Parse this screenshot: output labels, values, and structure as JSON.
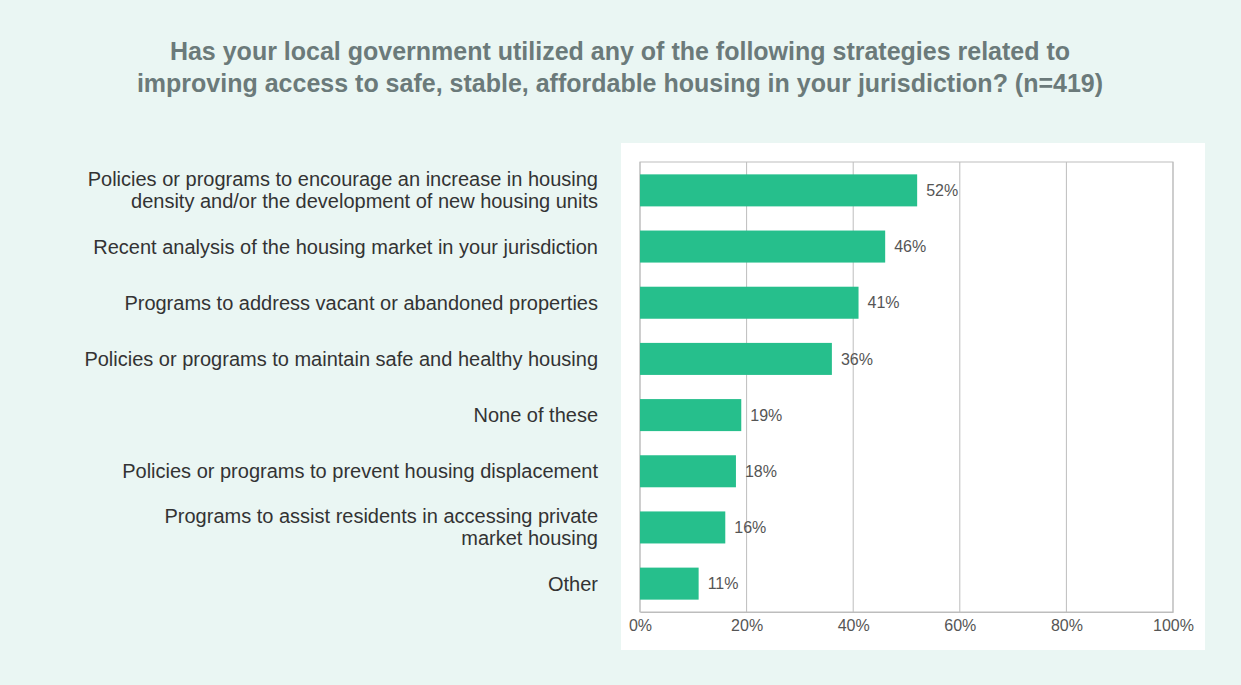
{
  "chart_data": {
    "type": "bar",
    "orientation": "horizontal",
    "title": "Has your local government utilized any of the following strategies related to\nimproving access to safe, stable, affordable housing in your jurisdiction? (n=419)",
    "categories": [
      "Policies or programs to encourage an increase in housing\ndensity and/or the development of new housing units",
      "Recent analysis of the housing market in your jurisdiction",
      "Programs to address vacant or abandoned properties",
      "Policies or programs to maintain safe and healthy housing",
      "None of these",
      "Policies or programs to prevent housing displacement",
      "Programs to assist residents in accessing private\nmarket housing",
      "Other"
    ],
    "values": [
      52,
      46,
      41,
      36,
      19,
      18,
      16,
      11
    ],
    "value_labels": [
      "52%",
      "46%",
      "41%",
      "36%",
      "19%",
      "18%",
      "16%",
      "11%"
    ],
    "color": "#26bf8c",
    "xlim": [
      0,
      100
    ],
    "xticks": [
      {
        "value": 0,
        "label": "0%"
      },
      {
        "value": 20,
        "label": "20%"
      },
      {
        "value": 40,
        "label": "40%"
      },
      {
        "value": 60,
        "label": "60%"
      },
      {
        "value": 80,
        "label": "80%"
      },
      {
        "value": 100,
        "label": "100%"
      }
    ],
    "grid": true,
    "data_labels": true
  }
}
